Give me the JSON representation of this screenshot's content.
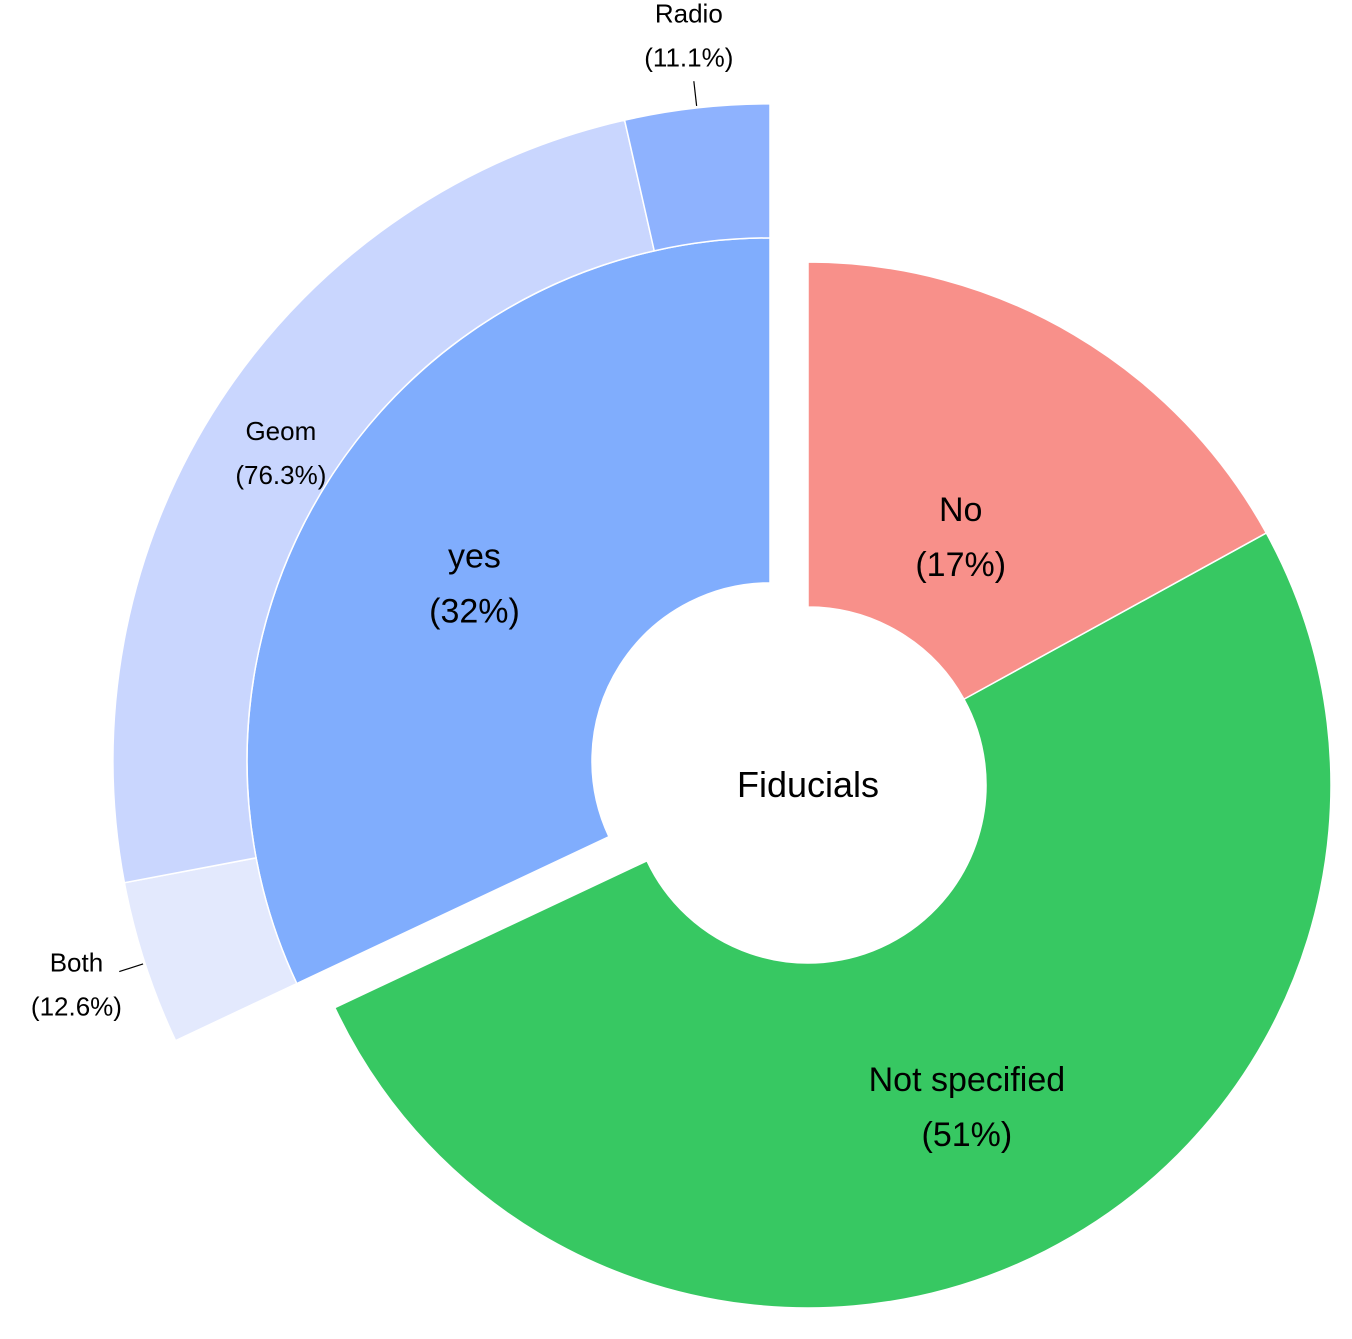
{
  "chart_data": {
    "type": "pie",
    "center_label": "Fiducials",
    "inner_ring": [
      {
        "label": "yes",
        "percent_text": "(32%)",
        "value": 32,
        "color": "#80ADFD"
      },
      {
        "label": "No",
        "percent_text": "(17%)",
        "value": 17,
        "color": "#F8908A"
      },
      {
        "label": "Not specified",
        "percent_text": "(51%)",
        "value": 51,
        "color": "#37C862"
      }
    ],
    "outer_ring": {
      "parent": "yes",
      "slices": [
        {
          "label": "Radio",
          "percent_text": "(11.1%)",
          "value": 11.1,
          "color": "#8EB2FE"
        },
        {
          "label": "Geom",
          "percent_text": "(76.3%)",
          "value": 76.3,
          "color": "#C9D6FE"
        },
        {
          "label": "Both",
          "percent_text": "(12.6%)",
          "value": 12.6,
          "color": "#E3E9FD"
        }
      ]
    }
  }
}
